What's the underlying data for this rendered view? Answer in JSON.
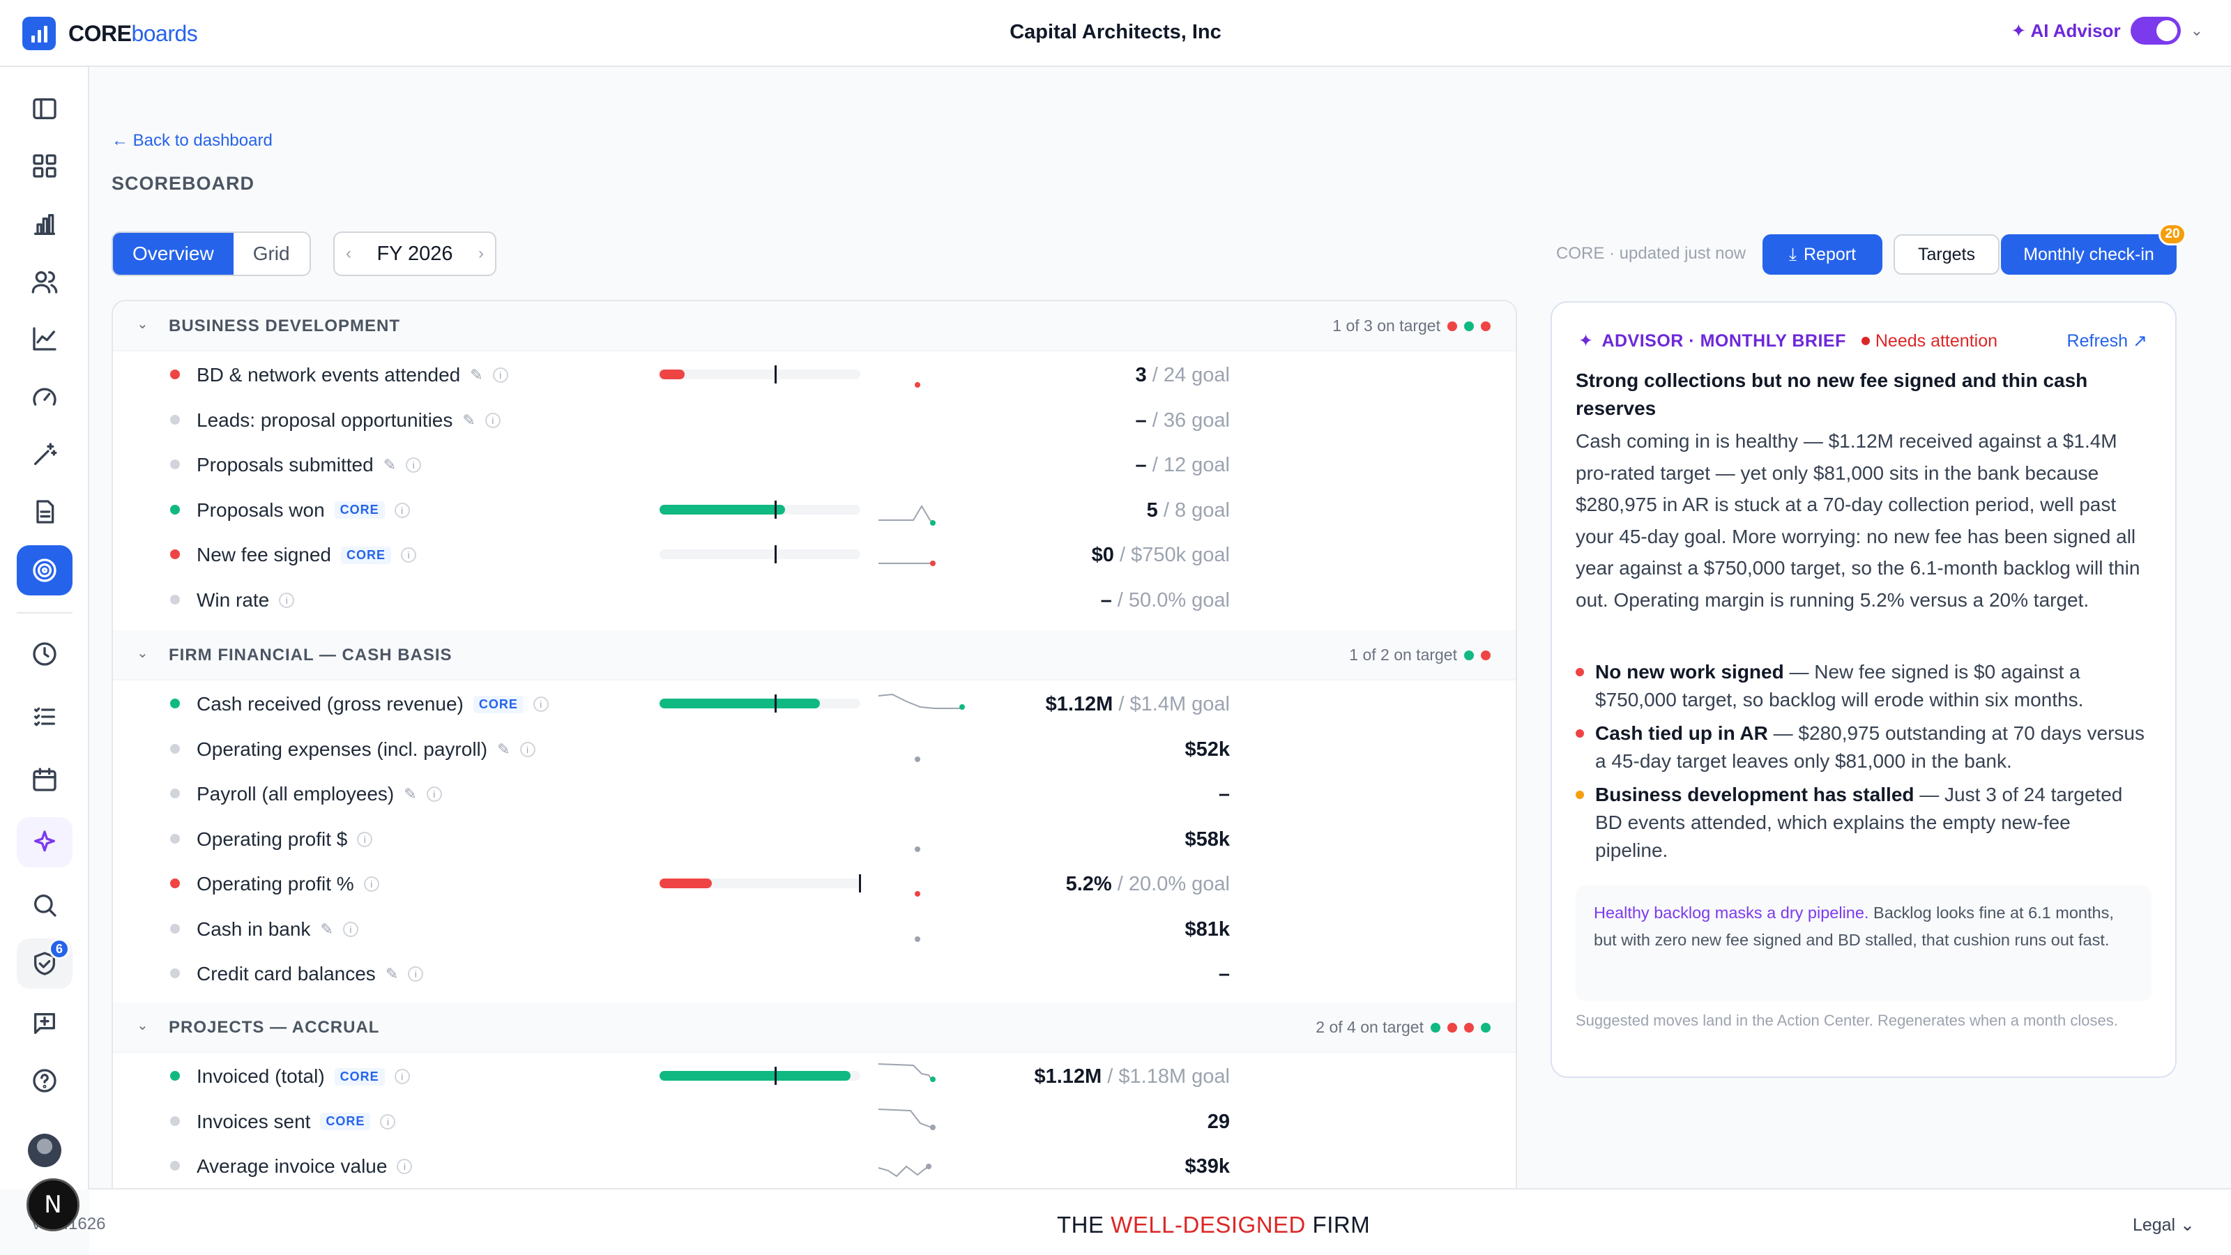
{
  "app": {
    "logo_core": "CORE",
    "logo_boards": "boards",
    "firm_name": "Capital Architects, Inc",
    "advisor_label": "✦ AI Advisor",
    "version": "v0.0.1626",
    "sidebar_badge": "6"
  },
  "page": {
    "back_link": "← Back to dashboard",
    "title": "SCOREBOARD",
    "tabs": [
      "Overview",
      "Grid"
    ],
    "period": "FY 2026",
    "updated": "CORE · updated just now",
    "report_btn": "Report",
    "targets_btn": "Targets",
    "checkin_btn": "Monthly check-in",
    "checkin_count": "20"
  },
  "colors": {
    "green": "#10b981",
    "red": "#ef4444",
    "grey": "#d1d5db",
    "orange": "#f59e0b",
    "accent": "#2563eb",
    "purple": "#7c3aed"
  },
  "sections": [
    {
      "title": "BUSINESS DEVELOPMENT",
      "count": "1 of 3 on target",
      "dots": [
        "red",
        "green",
        "red"
      ],
      "rows": [
        {
          "label": "BD & network events attended",
          "status": "red",
          "edit": true,
          "core": false,
          "actual": "3",
          "goal": " / 24 goal",
          "progress": 0.125,
          "target_mark": 0.58,
          "spark": "dot-low"
        },
        {
          "label": "Leads: proposal opportunities",
          "status": "grey",
          "edit": true,
          "core": false,
          "actual": "–",
          "goal": " / 36 goal"
        },
        {
          "label": "Proposals submitted",
          "status": "grey",
          "edit": true,
          "core": false,
          "actual": "–",
          "goal": " / 12 goal"
        },
        {
          "label": "Proposals won",
          "status": "green",
          "edit": false,
          "core": true,
          "actual": "5",
          "goal": " / 8 goal",
          "progress": 0.625,
          "target_mark": 0.58,
          "spark": "peak"
        },
        {
          "label": "New fee signed",
          "status": "red",
          "edit": false,
          "core": true,
          "actual": "$0",
          "goal": " / $750k goal",
          "progress": 0,
          "target_mark": 0.58,
          "spark": "flat"
        },
        {
          "label": "Win rate",
          "status": "grey",
          "edit": false,
          "core": false,
          "actual": "–",
          "goal": " / 50.0% goal"
        }
      ]
    },
    {
      "title": "FIRM FINANCIAL — CASH BASIS",
      "count": "1 of 2 on target",
      "dots": [
        "green",
        "red"
      ],
      "rows": [
        {
          "label": "Cash received (gross revenue)",
          "status": "green",
          "edit": false,
          "core": true,
          "actual": "$1.12M",
          "goal": " / $1.4M goal",
          "progress": 0.8,
          "target_mark": 0.58,
          "spark": "decline"
        },
        {
          "label": "Operating expenses (incl. payroll)",
          "status": "grey",
          "edit": true,
          "core": false,
          "actual": "$52k",
          "goal": "",
          "spark": "dot"
        },
        {
          "label": "Payroll (all employees)",
          "status": "grey",
          "edit": true,
          "core": false,
          "actual": "–",
          "goal": ""
        },
        {
          "label": "Operating profit $",
          "status": "grey",
          "edit": false,
          "core": false,
          "actual": "$58k",
          "goal": "",
          "spark": "dot"
        },
        {
          "label": "Operating profit %",
          "status": "red",
          "edit": false,
          "core": false,
          "actual": "5.2%",
          "goal": " / 20.0% goal",
          "progress": 0.26,
          "target_mark": 1.0,
          "spark": "dot-low"
        },
        {
          "label": "Cash in bank",
          "status": "grey",
          "edit": true,
          "core": false,
          "actual": "$81k",
          "goal": "",
          "spark": "dot"
        },
        {
          "label": "Credit card balances",
          "status": "grey",
          "edit": true,
          "core": false,
          "actual": "–",
          "goal": ""
        }
      ]
    },
    {
      "title": "PROJECTS — ACCRUAL",
      "count": "2 of 4 on target",
      "dots": [
        "green",
        "red",
        "red",
        "green"
      ],
      "rows": [
        {
          "label": "Invoiced (total)",
          "status": "green",
          "edit": false,
          "core": true,
          "actual": "$1.12M",
          "goal": " / $1.18M goal",
          "progress": 0.95,
          "target_mark": 0.58,
          "spark": "step"
        },
        {
          "label": "Invoices sent",
          "status": "grey",
          "edit": false,
          "core": true,
          "actual": "29",
          "goal": "",
          "spark": "step-grey"
        },
        {
          "label": "Average invoice value",
          "status": "grey",
          "edit": false,
          "core": false,
          "actual": "$39k",
          "goal": "",
          "spark": "v"
        }
      ]
    }
  ],
  "advisor": {
    "header": "ADVISOR · MONTHLY BRIEF",
    "status": "Needs attention",
    "refresh": "Refresh",
    "title": "Strong collections but no new fee signed and thin cash reserves",
    "body": "Cash coming in is healthy — $1.12M received against a $1.4M pro-rated target — yet only $81,000 sits in the bank because $280,975 in AR is stuck at a 70-day collection period, well past your 45-day goal. More worrying: no new fee has been signed all year against a $750,000 target, so the 6.1-month backlog will thin out. Operating margin is running 5.2% versus a 20% target.",
    "bullets": [
      {
        "head": "No new work signed",
        "text": " — New fee signed is $0 against a $750,000 target, so backlog will erode within six months.",
        "color": "red"
      },
      {
        "head": "Cash tied up in AR",
        "text": " — $280,975 outstanding at 70 days versus a 45-day target leaves only $81,000 in the bank.",
        "color": "red"
      },
      {
        "head": "Business development has stalled",
        "text": " — Just 3 of 24 targeted BD events attended, which explains the empty new-fee pipeline.",
        "color": "orange"
      }
    ],
    "callout_head": "Healthy backlog masks a dry pipeline.",
    "callout_text": " Backlog looks fine at 6.1 months, but with zero new fee signed and BD stalled, that cushion runs out fast.",
    "footnote": "Suggested moves land in the Action Center. Regenerates when a month closes."
  },
  "footer": {
    "brand_pre": "THE ",
    "brand_mid": "WELL-DESIGNED",
    "brand_post": " FIRM",
    "legal": "Legal ⌄"
  }
}
